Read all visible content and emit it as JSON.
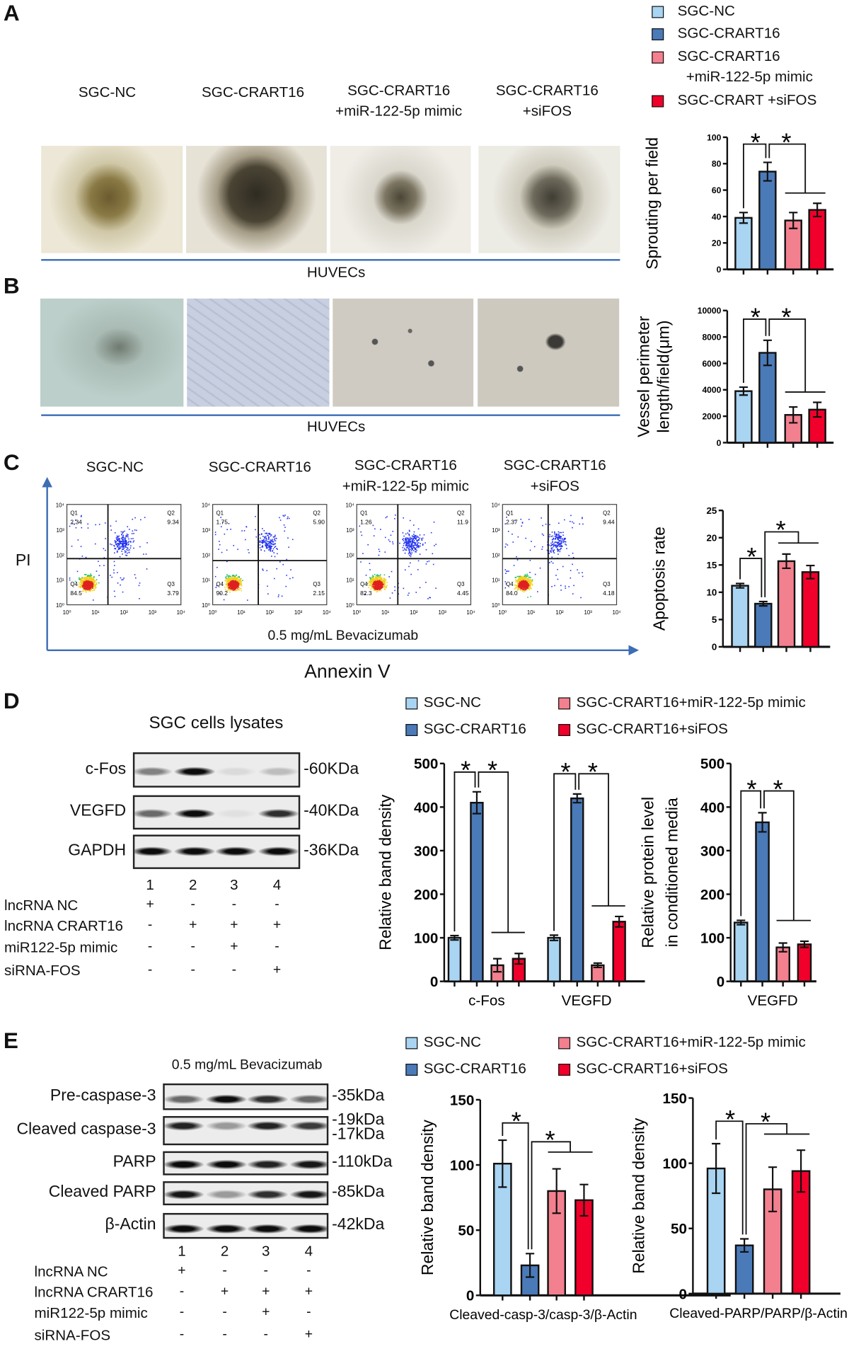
{
  "panels": {
    "A": "A",
    "B": "B",
    "C": "C",
    "D": "D",
    "E": "E"
  },
  "groups": [
    "SGC-NC",
    "SGC-CRART16",
    "SGC-CRART16\n+miR-122-5p mimic",
    "SGC-CRART16\n+siFOS"
  ],
  "colors": {
    "sgc_nc": "#a9d4f2",
    "sgc_crart16": "#4a7ab8",
    "mimic": "#f3808f",
    "sifos": "#f0002a"
  },
  "legend_top": [
    "SGC-NC",
    "SGC-CRART16",
    "SGC-CRART16",
    "+miR-122-5p mimic",
    "SGC-CRART +siFOS"
  ],
  "legend_de": [
    "SGC-NC",
    "SGC-CRART16",
    "SGC-CRART16+miR-122-5p mimic",
    "SGC-CRART16+siFOS"
  ],
  "panelA": {
    "titles": [
      [
        "SGC-NC"
      ],
      [
        "SGC-CRART16"
      ],
      [
        "SGC-CRART16",
        "+miR-122-5p mimic"
      ],
      [
        "SGC-CRART16",
        "+siFOS"
      ]
    ],
    "cell_label": "HUVECs"
  },
  "panelB": {
    "cell_label": "HUVECs"
  },
  "panelC": {
    "titles": [
      [
        "SGC-NC"
      ],
      [
        "SGC-CRART16"
      ],
      [
        "SGC-CRART16",
        "+miR-122-5p mimic"
      ],
      [
        "SGC-CRART16",
        "+siFOS"
      ]
    ],
    "y_axis": "PI",
    "x_axis": "Annexin V",
    "treatment": "0.5 mg/mL Bevacizumab",
    "ticks": [
      "10⁰",
      "10¹",
      "10²",
      "10³",
      "10⁴"
    ],
    "plots": [
      {
        "Q1": "2.34",
        "Q2": "9.34",
        "Q3": "3.79",
        "Q4": "84.5"
      },
      {
        "Q1": "1.75",
        "Q2": "5.90",
        "Q3": "2.15",
        "Q4": "90.2"
      },
      {
        "Q1": "1.26",
        "Q2": "11.9",
        "Q3": "4.45",
        "Q4": "82.3"
      },
      {
        "Q1": "2.37",
        "Q2": "9.44",
        "Q3": "4.18",
        "Q4": "84.0"
      }
    ]
  },
  "panelD": {
    "title": "SGC cells lysates",
    "blots": [
      {
        "label": "c-Fos",
        "size": "-60KDa"
      },
      {
        "label": "VEGFD",
        "size": "-40KDa"
      },
      {
        "label": "GAPDH",
        "size": "-36KDa"
      }
    ],
    "lanes": [
      "1",
      "2",
      "3",
      "4"
    ],
    "conditions": [
      {
        "label": "lncRNA NC",
        "signs": [
          "+",
          "-",
          "-",
          "-"
        ]
      },
      {
        "label": "lncRNA CRART16",
        "signs": [
          "-",
          "+",
          "+",
          "+"
        ]
      },
      {
        "label": "miR122-5p mimic",
        "signs": [
          "-",
          "-",
          "+",
          "-"
        ]
      },
      {
        "label": "siRNA-FOS",
        "signs": [
          "-",
          "-",
          "-",
          "+"
        ]
      }
    ]
  },
  "panelE": {
    "title": "0.5 mg/mL Bevacizumab",
    "blots": [
      {
        "label": "Pre-caspase-3",
        "size": "-35kDa"
      },
      {
        "label": "Cleaved caspase-3",
        "size": "-19kDa",
        "size2": "-17kDa"
      },
      {
        "label": "PARP",
        "size": "-110kDa"
      },
      {
        "label": "Cleaved PARP",
        "size": "-85kDa"
      },
      {
        "label": "β-Actin",
        "size": "-42kDa"
      }
    ],
    "lanes": [
      "1",
      "2",
      "3",
      "4"
    ],
    "conditions": [
      {
        "label": "lncRNA NC",
        "signs": [
          "+",
          "-",
          "-",
          "-"
        ]
      },
      {
        "label": "lncRNA CRART16",
        "signs": [
          "-",
          "+",
          "+",
          "+"
        ]
      },
      {
        "label": "miR122-5p mimic",
        "signs": [
          "-",
          "-",
          "+",
          "-"
        ]
      },
      {
        "label": "siRNA-FOS",
        "signs": [
          "-",
          "-",
          "-",
          "+"
        ]
      }
    ]
  },
  "chart_data": [
    {
      "type": "bar",
      "ylabel": [
        "Sprouting per field"
      ],
      "ylim": [
        0,
        100
      ],
      "yticks": [
        "0",
        "20",
        "40",
        "60",
        "80",
        "100"
      ],
      "groups": [
        {
          "label": "",
          "values": [
            39,
            74,
            37,
            45
          ],
          "errors": [
            4,
            7,
            6,
            5
          ]
        }
      ],
      "significance": [
        {
          "pair": [
            0,
            1
          ],
          "label": "*"
        },
        {
          "pair": [
            1,
            [
              2,
              3
            ]
          ],
          "label": "*"
        }
      ]
    },
    {
      "type": "bar",
      "ylabel": [
        "Vessel perimeter",
        "length/field(μm)"
      ],
      "ylim": [
        0,
        10000
      ],
      "yticks": [
        "0",
        "2000",
        "4000",
        "6000",
        "8000",
        "10000"
      ],
      "groups": [
        {
          "label": "",
          "values": [
            3900,
            6800,
            2100,
            2500
          ],
          "errors": [
            300,
            950,
            600,
            550
          ]
        }
      ],
      "significance": [
        {
          "pair": [
            0,
            1
          ],
          "label": "*"
        },
        {
          "pair": [
            1,
            [
              2,
              3
            ]
          ],
          "label": "*"
        }
      ]
    },
    {
      "type": "bar",
      "ylabel": [
        "Apoptosis rate"
      ],
      "ylim": [
        0,
        25
      ],
      "yticks": [
        "0",
        "5",
        "10",
        "15",
        "20",
        "25"
      ],
      "groups": [
        {
          "label": "",
          "values": [
            11.2,
            7.9,
            15.7,
            13.7
          ],
          "errors": [
            0.4,
            0.4,
            1.3,
            1.2
          ]
        }
      ],
      "significance": [
        {
          "pair": [
            0,
            1
          ],
          "label": "*"
        },
        {
          "pair": [
            1,
            [
              2,
              3
            ]
          ],
          "label": "*"
        }
      ]
    },
    {
      "type": "bar",
      "ylabel": [
        "Relative band density"
      ],
      "ylim": [
        0,
        500
      ],
      "yticks": [
        "0",
        "100",
        "200",
        "300",
        "400",
        "500"
      ],
      "groups": [
        {
          "label": "c-Fos",
          "values": [
            100,
            410,
            37,
            52
          ],
          "errors": [
            5,
            25,
            15,
            12
          ]
        },
        {
          "label": "VEGFD",
          "values": [
            100,
            420,
            37,
            137
          ],
          "errors": [
            6,
            10,
            5,
            12
          ]
        }
      ],
      "significance": [
        {
          "pair": [
            0,
            1
          ],
          "label": "*"
        },
        {
          "pair": [
            1,
            [
              2,
              3
            ]
          ],
          "label": "*"
        }
      ]
    },
    {
      "type": "bar",
      "ylabel": [
        "Relative protein level",
        "in conditioned media"
      ],
      "ylim": [
        0,
        500
      ],
      "yticks": [
        "0",
        "100",
        "200",
        "300",
        "400",
        "500"
      ],
      "groups": [
        {
          "label": "VEGFD",
          "values": [
            135,
            365,
            78,
            85
          ],
          "errors": [
            5,
            22,
            10,
            7
          ]
        }
      ],
      "significance": [
        {
          "pair": [
            0,
            1
          ],
          "label": "*"
        },
        {
          "pair": [
            1,
            [
              2,
              3
            ]
          ],
          "label": "*"
        }
      ]
    },
    {
      "type": "bar",
      "ylabel": [
        "Relative band density"
      ],
      "ylim": [
        0,
        150
      ],
      "yticks": [
        "0",
        "50",
        "100",
        "150"
      ],
      "groups": [
        {
          "label": "Cleaved-casp-3/casp-3/β-Actin",
          "values": [
            101,
            23,
            80,
            73
          ],
          "errors": [
            18,
            9,
            17,
            12
          ]
        }
      ],
      "significance": [
        {
          "pair": [
            0,
            1
          ],
          "label": "*"
        },
        {
          "pair": [
            1,
            [
              2,
              3
            ]
          ],
          "label": "*"
        }
      ]
    },
    {
      "type": "bar",
      "ylabel": [
        "Relative band density"
      ],
      "ylim": [
        0,
        150
      ],
      "yticks": [
        "0",
        "50",
        "100",
        "150"
      ],
      "groups": [
        {
          "label": "Cleaved-PARP/PARP/β-Actin",
          "values": [
            96,
            37,
            80,
            94
          ],
          "errors": [
            19,
            5,
            17,
            16
          ]
        }
      ],
      "significance": [
        {
          "pair": [
            0,
            1
          ],
          "label": "*"
        },
        {
          "pair": [
            1,
            [
              2,
              3
            ]
          ],
          "label": "*"
        }
      ]
    }
  ]
}
